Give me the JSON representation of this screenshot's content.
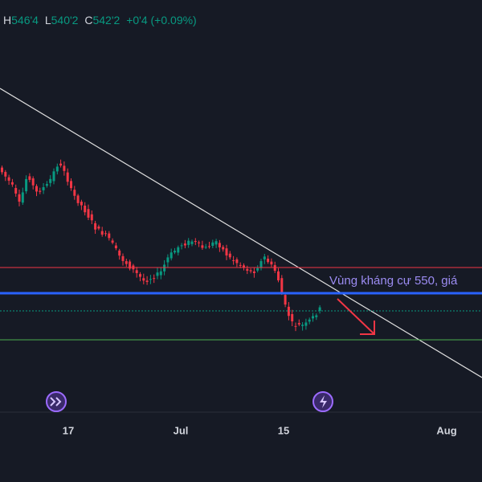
{
  "header": {
    "ohlc": [
      {
        "label": "H",
        "value": "546'4"
      },
      {
        "label": "L",
        "value": "540'2"
      },
      {
        "label": "C",
        "value": "542'2"
      }
    ],
    "change": "+0'4 (+0.09%)"
  },
  "annotation": "Vùng kháng cự 550, giá",
  "x_axis": {
    "labels": [
      "17",
      "Jul",
      "15",
      "Aug"
    ]
  }
}
